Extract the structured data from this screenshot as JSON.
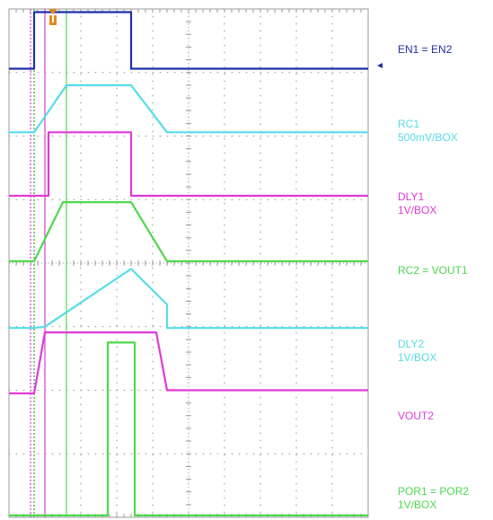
{
  "colors": {
    "en": "#1f2fa8",
    "rc1": "#55dde8",
    "dly1": "#e03ad8",
    "rc2": "#4ed84e",
    "dly2": "#55dde8",
    "vout2": "#e03ad8",
    "por": "#4ed84e",
    "grid": "#9a9a9a",
    "trigger": "#e08a1a"
  },
  "labels": {
    "ch1": "EN1 = EN2",
    "ch2_line1": "RC1",
    "ch2_line2": "500mV/BOX",
    "ch3_line1": "DLY1",
    "ch3_line2": "1V/BOX",
    "ch4": "RC2 = VOUT1",
    "ch5_line1": "DLY2",
    "ch5_line2": "1V/BOX",
    "ch6": "VOUT2",
    "ch7_line1": "POR1 = POR2",
    "ch7_line2": "1V/BOX"
  },
  "trigger_icon": "trigger-marker-icon",
  "chart_data": {
    "type": "line",
    "x_divisions": 10,
    "y_divisions": 8,
    "grid": true,
    "series": [
      {
        "name": "EN1 = EN2",
        "color": "#1f2fa8",
        "points": [
          [
            0,
            0.94
          ],
          [
            0.7,
            0.94
          ],
          [
            0.7,
            0.05
          ],
          [
            3.4,
            0.05
          ],
          [
            3.4,
            0.94
          ],
          [
            10,
            0.94
          ]
        ]
      },
      {
        "name": "RC1 500mV/BOX",
        "color": "#55dde8",
        "points": [
          [
            0,
            1.94
          ],
          [
            0.7,
            1.94
          ],
          [
            1.6,
            1.2
          ],
          [
            3.4,
            1.2
          ],
          [
            4.4,
            1.94
          ],
          [
            10,
            1.94
          ]
        ]
      },
      {
        "name": "DLY1 1V/BOX",
        "color": "#e03ad8",
        "points": [
          [
            0,
            2.94
          ],
          [
            1.1,
            2.94
          ],
          [
            1.1,
            1.94
          ],
          [
            3.4,
            1.94
          ],
          [
            3.4,
            2.94
          ],
          [
            10,
            2.94
          ]
        ]
      },
      {
        "name": "RC2 = VOUT1",
        "color": "#4ed84e",
        "points": [
          [
            0,
            3.97
          ],
          [
            0.7,
            3.97
          ],
          [
            1.5,
            3.04
          ],
          [
            3.4,
            3.04
          ],
          [
            4.4,
            3.97
          ],
          [
            10,
            3.97
          ]
        ]
      },
      {
        "name": "DLY2 1V/BOX",
        "color": "#55dde8",
        "points": [
          [
            0,
            5.02
          ],
          [
            0.7,
            5.02
          ],
          [
            1.0,
            5.0
          ],
          [
            3.4,
            4.09
          ],
          [
            4.4,
            4.65
          ],
          [
            4.4,
            5.02
          ],
          [
            10,
            5.02
          ]
        ]
      },
      {
        "name": "VOUT2",
        "color": "#e03ad8",
        "points": [
          [
            0,
            6.05
          ],
          [
            0.7,
            6.05
          ],
          [
            1.0,
            5.09
          ],
          [
            4.1,
            5.09
          ],
          [
            4.4,
            6.0
          ],
          [
            10,
            6.0
          ]
        ]
      },
      {
        "name": "POR1 = POR2 1V/BOX",
        "color": "#4ed84e",
        "points": [
          [
            0,
            7.97
          ],
          [
            2.75,
            7.97
          ],
          [
            2.75,
            5.25
          ],
          [
            3.5,
            5.25
          ],
          [
            3.5,
            7.97
          ],
          [
            10,
            7.97
          ]
        ]
      }
    ],
    "markers": [
      {
        "color": "#3c9a3c",
        "x": 0.7,
        "style": "dotted"
      },
      {
        "color": "#4ed84e",
        "x": 1.6,
        "style": "solid"
      },
      {
        "color": "#e03ad8",
        "x": 0.6,
        "style": "dotted"
      },
      {
        "color": "#e03ad8",
        "x": 1.0,
        "style": "solid"
      }
    ]
  }
}
